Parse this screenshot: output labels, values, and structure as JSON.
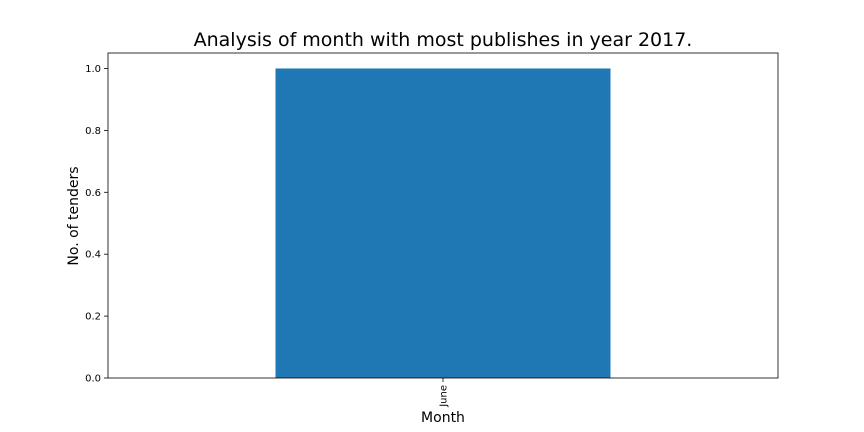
{
  "chart_data": {
    "type": "bar",
    "title": "Analysis of month with most publishes in year 2017.",
    "xlabel": "Month",
    "ylabel": "No. of tenders",
    "categories": [
      "June"
    ],
    "values": [
      1.0
    ],
    "ylim": [
      0,
      1.05
    ],
    "yticks": [
      "0.0",
      "0.2",
      "0.4",
      "0.6",
      "0.8",
      "1.0"
    ],
    "bar_color": "#1f77b4",
    "grid": false,
    "legend": "none"
  }
}
